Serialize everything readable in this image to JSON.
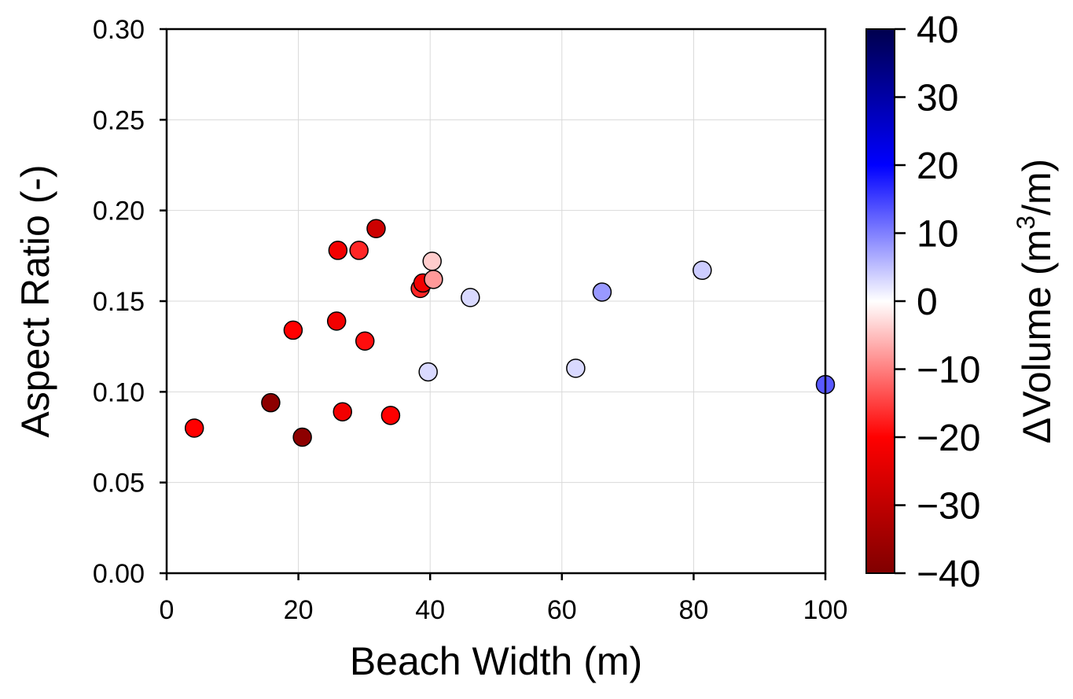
{
  "chart_data": {
    "type": "scatter",
    "xlabel": "Beach Width (m)",
    "ylabel": "Aspect Ratio (-)",
    "xlim": [
      0,
      100
    ],
    "ylim": [
      0,
      0.3
    ],
    "x_ticks": [
      "0",
      "20",
      "40",
      "60",
      "80",
      "100"
    ],
    "y_ticks": [
      "0.00",
      "0.05",
      "0.10",
      "0.15",
      "0.20",
      "0.25",
      "0.30"
    ],
    "grid": true,
    "colorbar": {
      "label_prefix": "ΔVolume (m",
      "label_sup": "3",
      "label_suffix": "/m)",
      "range": [
        -40,
        40
      ],
      "colormap": "seismic",
      "ticks": [
        "−40",
        "−30",
        "−20",
        "−10",
        "0",
        "10",
        "20",
        "30",
        "40"
      ],
      "colors": {
        "low": "#800000",
        "mid_low": "#ff0000",
        "center": "#ffffff",
        "mid_high": "#0000ff",
        "high": "#00004d"
      }
    },
    "points": [
      {
        "x": 4.2,
        "y": 0.08,
        "c": -20
      },
      {
        "x": 15.8,
        "y": 0.094,
        "c": -38
      },
      {
        "x": 19.2,
        "y": 0.134,
        "c": -20
      },
      {
        "x": 20.6,
        "y": 0.075,
        "c": -38
      },
      {
        "x": 25.8,
        "y": 0.139,
        "c": -22
      },
      {
        "x": 26.0,
        "y": 0.178,
        "c": -22
      },
      {
        "x": 26.7,
        "y": 0.089,
        "c": -22
      },
      {
        "x": 29.2,
        "y": 0.178,
        "c": -17
      },
      {
        "x": 30.1,
        "y": 0.128,
        "c": -19
      },
      {
        "x": 31.8,
        "y": 0.19,
        "c": -28
      },
      {
        "x": 34.0,
        "y": 0.087,
        "c": -20
      },
      {
        "x": 38.5,
        "y": 0.157,
        "c": -17
      },
      {
        "x": 38.9,
        "y": 0.16,
        "c": -22
      },
      {
        "x": 39.7,
        "y": 0.111,
        "c": 3
      },
      {
        "x": 40.3,
        "y": 0.172,
        "c": -4
      },
      {
        "x": 40.5,
        "y": 0.162,
        "c": -8
      },
      {
        "x": 46.1,
        "y": 0.152,
        "c": 3
      },
      {
        "x": 62.1,
        "y": 0.113,
        "c": 3
      },
      {
        "x": 66.1,
        "y": 0.155,
        "c": 8
      },
      {
        "x": 81.3,
        "y": 0.167,
        "c": 4
      },
      {
        "x": 100.0,
        "y": 0.104,
        "c": 13
      }
    ]
  }
}
